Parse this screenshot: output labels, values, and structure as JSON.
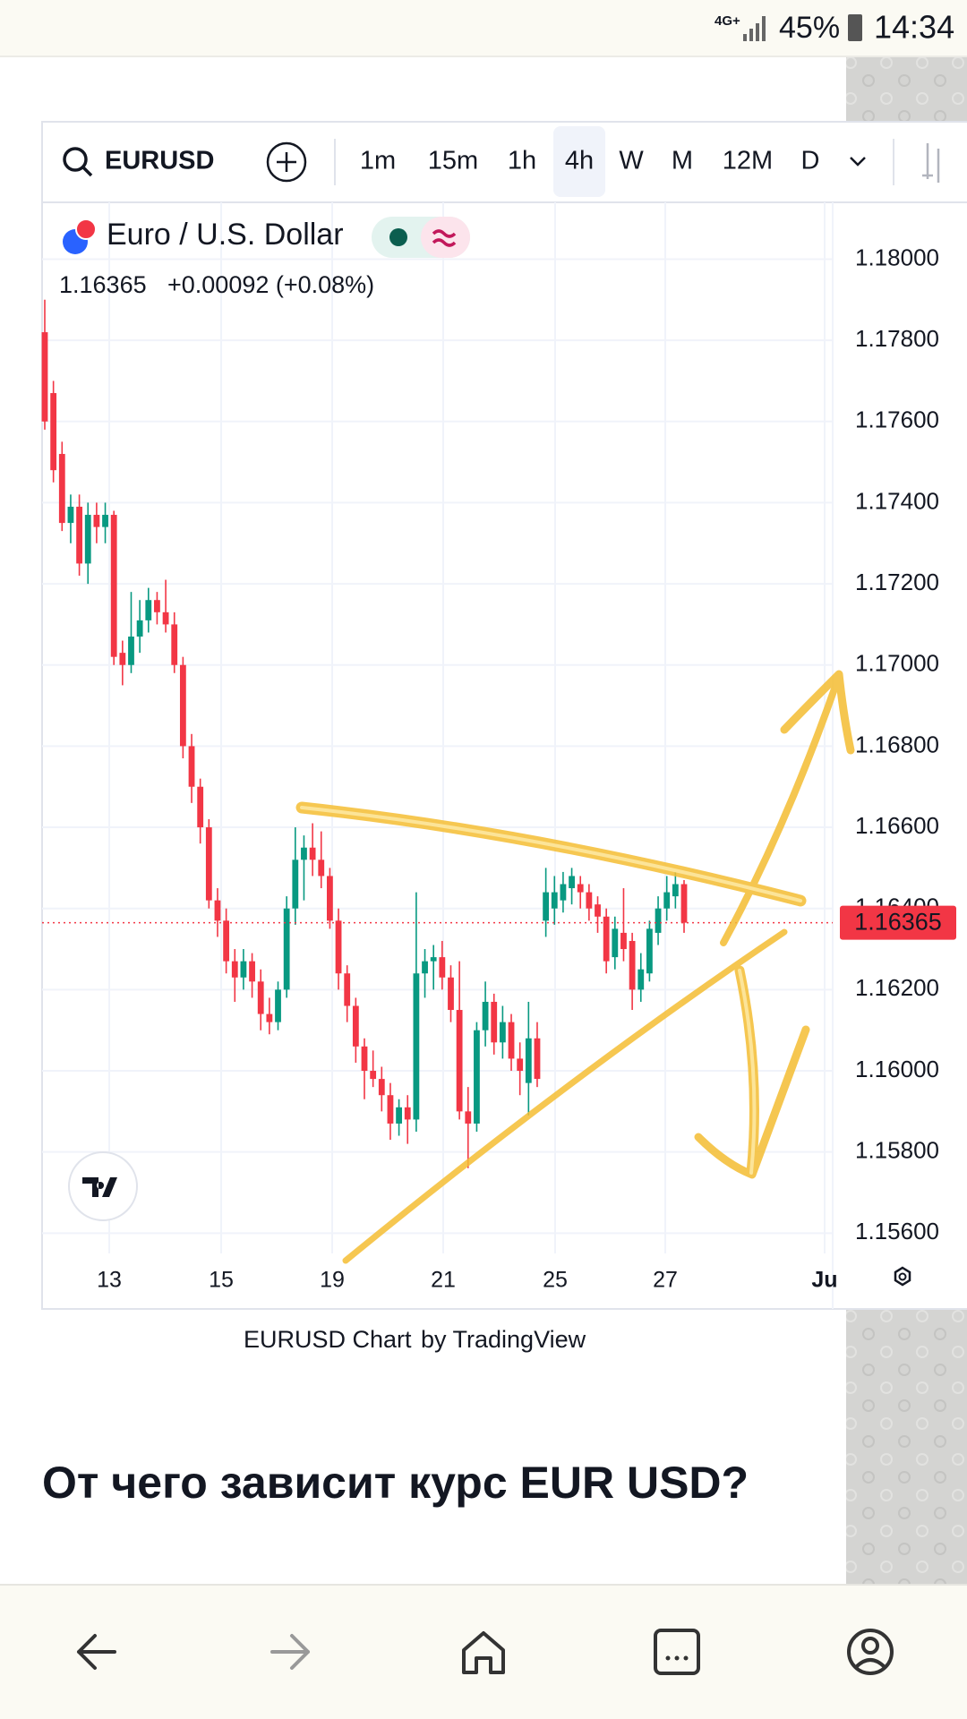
{
  "status_bar": {
    "network": "4G+",
    "battery": "45%",
    "time": "14:34"
  },
  "toolbar": {
    "symbol": "EURUSD",
    "intervals": [
      "1m",
      "15m",
      "1h",
      "4h",
      "W",
      "M",
      "12M",
      "D"
    ],
    "active_interval": 3
  },
  "chart_data": {
    "type": "candlestick",
    "title": "Euro / U.S. Dollar",
    "last_price": {
      "value": 1.16365,
      "label": "1.16365"
    },
    "change": "+0.00092 (+0.08%)",
    "up_color": "#089981",
    "down_color": "#f23645",
    "ylim": [
      1.1555,
      1.1814
    ],
    "yticks": [
      {
        "value": 1.156,
        "label": "1.15600"
      },
      {
        "value": 1.158,
        "label": "1.15800"
      },
      {
        "value": 1.16,
        "label": "1.16000"
      },
      {
        "value": 1.162,
        "label": "1.16200"
      },
      {
        "value": 1.164,
        "label": "1.16400"
      },
      {
        "value": 1.166,
        "label": "1.16600"
      },
      {
        "value": 1.168,
        "label": "1.16800"
      },
      {
        "value": 1.17,
        "label": "1.17000"
      },
      {
        "value": 1.172,
        "label": "1.17200"
      },
      {
        "value": 1.174,
        "label": "1.17400"
      },
      {
        "value": 1.176,
        "label": "1.17600"
      },
      {
        "value": 1.178,
        "label": "1.17800"
      },
      {
        "value": 1.18,
        "label": "1.18000"
      }
    ],
    "x_labels": [
      "13",
      "15",
      "19",
      "21",
      "25",
      "27",
      "Ju"
    ],
    "grid": true,
    "candles": [
      {
        "o": 1.1782,
        "h": 1.179,
        "l": 1.1758,
        "c": 1.176
      },
      {
        "o": 1.1767,
        "h": 1.177,
        "l": 1.1745,
        "c": 1.1748
      },
      {
        "o": 1.1752,
        "h": 1.1755,
        "l": 1.1733,
        "c": 1.1735
      },
      {
        "o": 1.1735,
        "h": 1.1742,
        "l": 1.173,
        "c": 1.1739
      },
      {
        "o": 1.1739,
        "h": 1.1742,
        "l": 1.1722,
        "c": 1.1725
      },
      {
        "o": 1.1725,
        "h": 1.174,
        "l": 1.172,
        "c": 1.1737
      },
      {
        "o": 1.1737,
        "h": 1.174,
        "l": 1.173,
        "c": 1.1734
      },
      {
        "o": 1.1734,
        "h": 1.174,
        "l": 1.173,
        "c": 1.1737
      },
      {
        "o": 1.1737,
        "h": 1.1738,
        "l": 1.17,
        "c": 1.1702
      },
      {
        "o": 1.1703,
        "h": 1.1706,
        "l": 1.1695,
        "c": 1.17
      },
      {
        "o": 1.17,
        "h": 1.1718,
        "l": 1.1698,
        "c": 1.1707
      },
      {
        "o": 1.1707,
        "h": 1.1716,
        "l": 1.1703,
        "c": 1.1711
      },
      {
        "o": 1.1711,
        "h": 1.1719,
        "l": 1.1708,
        "c": 1.1716
      },
      {
        "o": 1.1716,
        "h": 1.1718,
        "l": 1.171,
        "c": 1.1713
      },
      {
        "o": 1.1713,
        "h": 1.1721,
        "l": 1.1708,
        "c": 1.171
      },
      {
        "o": 1.171,
        "h": 1.1713,
        "l": 1.1698,
        "c": 1.17
      },
      {
        "o": 1.17,
        "h": 1.1702,
        "l": 1.1677,
        "c": 1.168
      },
      {
        "o": 1.168,
        "h": 1.1683,
        "l": 1.1666,
        "c": 1.167
      },
      {
        "o": 1.167,
        "h": 1.1672,
        "l": 1.1656,
        "c": 1.166
      },
      {
        "o": 1.166,
        "h": 1.1662,
        "l": 1.164,
        "c": 1.1642
      },
      {
        "o": 1.1642,
        "h": 1.1645,
        "l": 1.1633,
        "c": 1.1637
      },
      {
        "o": 1.1637,
        "h": 1.164,
        "l": 1.1624,
        "c": 1.1627
      },
      {
        "o": 1.1627,
        "h": 1.163,
        "l": 1.1617,
        "c": 1.1623
      },
      {
        "o": 1.1623,
        "h": 1.163,
        "l": 1.162,
        "c": 1.1627
      },
      {
        "o": 1.1627,
        "h": 1.1629,
        "l": 1.1618,
        "c": 1.1622
      },
      {
        "o": 1.1622,
        "h": 1.1625,
        "l": 1.161,
        "c": 1.1614
      },
      {
        "o": 1.1614,
        "h": 1.1618,
        "l": 1.1609,
        "c": 1.1612
      },
      {
        "o": 1.1612,
        "h": 1.1622,
        "l": 1.161,
        "c": 1.162
      },
      {
        "o": 1.162,
        "h": 1.1643,
        "l": 1.1618,
        "c": 1.164
      },
      {
        "o": 1.164,
        "h": 1.166,
        "l": 1.1636,
        "c": 1.1652
      },
      {
        "o": 1.1652,
        "h": 1.1658,
        "l": 1.1642,
        "c": 1.1655
      },
      {
        "o": 1.1655,
        "h": 1.1661,
        "l": 1.1648,
        "c": 1.1652
      },
      {
        "o": 1.1652,
        "h": 1.1659,
        "l": 1.1645,
        "c": 1.1648
      },
      {
        "o": 1.1648,
        "h": 1.165,
        "l": 1.1635,
        "c": 1.1637
      },
      {
        "o": 1.1637,
        "h": 1.164,
        "l": 1.162,
        "c": 1.1624
      },
      {
        "o": 1.1624,
        "h": 1.1626,
        "l": 1.1612,
        "c": 1.1616
      },
      {
        "o": 1.1616,
        "h": 1.1618,
        "l": 1.1602,
        "c": 1.1606
      },
      {
        "o": 1.1606,
        "h": 1.1608,
        "l": 1.1593,
        "c": 1.16
      },
      {
        "o": 1.16,
        "h": 1.1605,
        "l": 1.1596,
        "c": 1.1598
      },
      {
        "o": 1.1598,
        "h": 1.1601,
        "l": 1.159,
        "c": 1.1594
      },
      {
        "o": 1.1594,
        "h": 1.1597,
        "l": 1.1583,
        "c": 1.1587
      },
      {
        "o": 1.1587,
        "h": 1.1593,
        "l": 1.1584,
        "c": 1.1591
      },
      {
        "o": 1.1591,
        "h": 1.1594,
        "l": 1.1582,
        "c": 1.1588
      },
      {
        "o": 1.1588,
        "h": 1.1644,
        "l": 1.1585,
        "c": 1.1624
      },
      {
        "o": 1.1624,
        "h": 1.163,
        "l": 1.1618,
        "c": 1.1627
      },
      {
        "o": 1.1627,
        "h": 1.1631,
        "l": 1.162,
        "c": 1.1628
      },
      {
        "o": 1.1628,
        "h": 1.1632,
        "l": 1.162,
        "c": 1.1623
      },
      {
        "o": 1.1623,
        "h": 1.1626,
        "l": 1.1612,
        "c": 1.1615
      },
      {
        "o": 1.1615,
        "h": 1.1627,
        "l": 1.1588,
        "c": 1.159
      },
      {
        "o": 1.159,
        "h": 1.1596,
        "l": 1.1576,
        "c": 1.1587
      },
      {
        "o": 1.1587,
        "h": 1.1612,
        "l": 1.1585,
        "c": 1.161
      },
      {
        "o": 1.161,
        "h": 1.1622,
        "l": 1.1606,
        "c": 1.1617
      },
      {
        "o": 1.1617,
        "h": 1.1619,
        "l": 1.1604,
        "c": 1.1607
      },
      {
        "o": 1.1607,
        "h": 1.1616,
        "l": 1.1603,
        "c": 1.1612
      },
      {
        "o": 1.1612,
        "h": 1.1614,
        "l": 1.16,
        "c": 1.1603
      },
      {
        "o": 1.1603,
        "h": 1.1607,
        "l": 1.1594,
        "c": 1.16
      },
      {
        "o": 1.1597,
        "h": 1.1617,
        "l": 1.1589,
        "c": 1.1608
      },
      {
        "o": 1.1608,
        "h": 1.1612,
        "l": 1.1596,
        "c": 1.1598
      },
      {
        "o": 1.1637,
        "h": 1.165,
        "l": 1.1633,
        "c": 1.1644
      },
      {
        "o": 1.164,
        "h": 1.1648,
        "l": 1.1636,
        "c": 1.1644
      },
      {
        "o": 1.1642,
        "h": 1.1649,
        "l": 1.1639,
        "c": 1.1646
      },
      {
        "o": 1.1645,
        "h": 1.165,
        "l": 1.1641,
        "c": 1.1648
      },
      {
        "o": 1.1646,
        "h": 1.1648,
        "l": 1.164,
        "c": 1.1644
      },
      {
        "o": 1.1644,
        "h": 1.1646,
        "l": 1.1637,
        "c": 1.164
      },
      {
        "o": 1.1641,
        "h": 1.1643,
        "l": 1.1634,
        "c": 1.1638
      },
      {
        "o": 1.1638,
        "h": 1.164,
        "l": 1.1624,
        "c": 1.1627
      },
      {
        "o": 1.1628,
        "h": 1.1638,
        "l": 1.1625,
        "c": 1.1635
      },
      {
        "o": 1.1634,
        "h": 1.1645,
        "l": 1.1627,
        "c": 1.163
      },
      {
        "o": 1.1632,
        "h": 1.1634,
        "l": 1.1615,
        "c": 1.162
      },
      {
        "o": 1.162,
        "h": 1.1629,
        "l": 1.1617,
        "c": 1.1625
      },
      {
        "o": 1.1624,
        "h": 1.1637,
        "l": 1.1622,
        "c": 1.1635
      },
      {
        "o": 1.1634,
        "h": 1.1643,
        "l": 1.1631,
        "c": 1.164
      },
      {
        "o": 1.164,
        "h": 1.1648,
        "l": 1.1637,
        "c": 1.1644
      },
      {
        "o": 1.1643,
        "h": 1.1649,
        "l": 1.164,
        "c": 1.1646
      },
      {
        "o": 1.1646,
        "h": 1.1647,
        "l": 1.1634,
        "c": 1.16365
      }
    ]
  },
  "caption": {
    "link": "EURUSD Chart",
    "suffix": "by TradingView"
  },
  "heading": "От чего зависит курс EUR USD?"
}
